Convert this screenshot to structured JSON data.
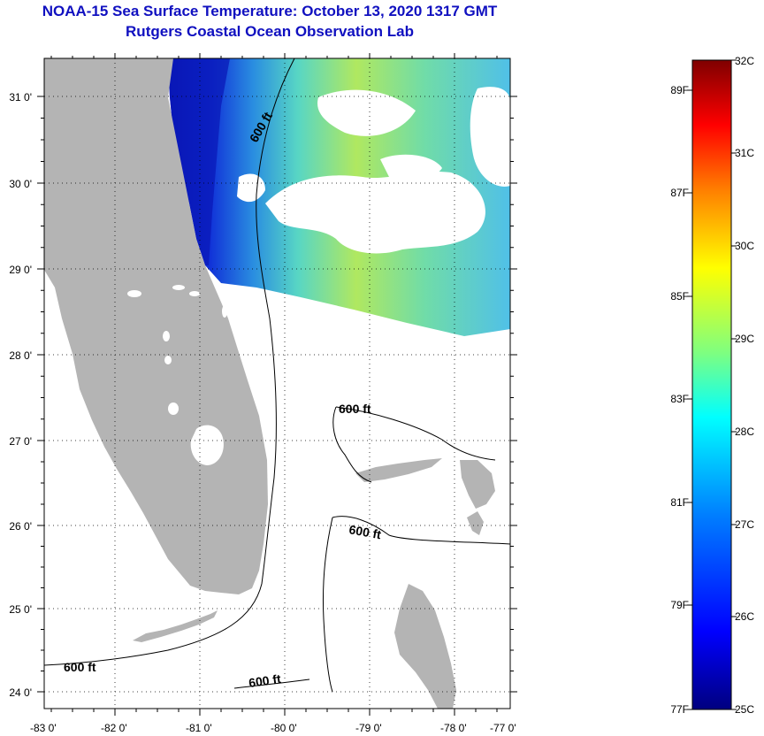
{
  "title": {
    "line1": "NOAA-15 Sea Surface Temperature:  October 13, 2020 1317 GMT",
    "line2": "Rutgers Coastal Ocean Observation Lab"
  },
  "map": {
    "lon_ticks": [
      "-83 0'",
      "-82 0'",
      "-81 0'",
      "-80 0'",
      "-79 0'",
      "-78 0'",
      "-77 0'"
    ],
    "lat_ticks": [
      "31 0'",
      "30 0'",
      "29 0'",
      "28 0'",
      "27 0'",
      "26 0'",
      "25 0'",
      "24 0'"
    ],
    "contour_labels": [
      "600 ft",
      "600 ft",
      "600 ft",
      "600 ft",
      "600 ft"
    ]
  },
  "colorbar": {
    "celsius": [
      "32C",
      "31C",
      "30C",
      "29C",
      "28C",
      "27C",
      "26C",
      "25C"
    ],
    "fahrenheit": [
      "89F",
      "87F",
      "85F",
      "83F",
      "81F",
      "79F",
      "77F"
    ],
    "colors": [
      "#00007f",
      "#0000ff",
      "#007fff",
      "#00ffff",
      "#7fff7f",
      "#ffff00",
      "#ff7f00",
      "#ff0000",
      "#7f0000"
    ]
  },
  "colors": {
    "land": "#b4b4b4",
    "title": "#1010c0"
  }
}
